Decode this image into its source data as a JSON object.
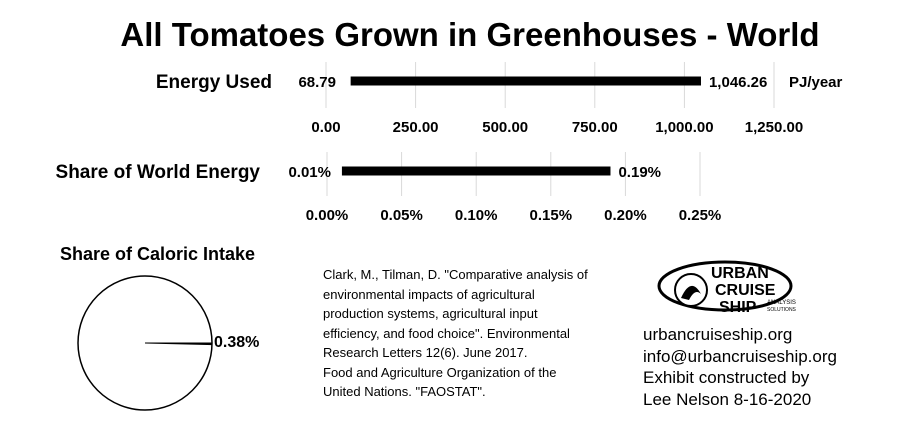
{
  "title": "All Tomatoes Grown in Greenhouses - World",
  "chart_data": [
    {
      "type": "bar",
      "orientation": "horizontal",
      "label": "Energy Used",
      "range": [
        68.79,
        1046.26
      ],
      "value_labels": [
        "68.79",
        "1,046.26"
      ],
      "unit": "PJ/year",
      "xlim": [
        0,
        1250
      ],
      "ticks": [
        0,
        250,
        500,
        750,
        1000,
        1250
      ],
      "tick_labels": [
        "0.00",
        "250.00",
        "500.00",
        "750.00",
        "1,000.00",
        "1,250.00"
      ],
      "grid": true
    },
    {
      "type": "bar",
      "orientation": "horizontal",
      "label": "Share of World Energy",
      "range": [
        0.01,
        0.19
      ],
      "value_labels": [
        "0.01%",
        "0.19%"
      ],
      "xlim": [
        0,
        0.25
      ],
      "ticks": [
        0,
        0.05,
        0.1,
        0.15,
        0.2,
        0.25
      ],
      "tick_labels": [
        "0.00%",
        "0.05%",
        "0.10%",
        "0.15%",
        "0.20%",
        "0.25%"
      ],
      "grid": true
    },
    {
      "type": "pie",
      "title": "Share of Caloric Intake",
      "slices": [
        0.38,
        99.62
      ],
      "slice_label": "0.38%"
    }
  ],
  "references": [
    "Clark, M., Tilman, D. \"Comparative analysis of",
    "environmental impacts of agricultural",
    "production systems, agricultural input",
    "efficiency, and food choice\". Environmental",
    "Research Letters 12(6). June 2017.",
    "Food and Agriculture Organization of the",
    "United Nations. \"FAOSTAT\"."
  ],
  "logo": {
    "line1": "URBAN",
    "line2": "CRUISE",
    "line3": "SHIP",
    "tag1": "ANALYSIS",
    "tag2": "SOLUTIONS"
  },
  "contact": [
    "urbancruiseship.org",
    "info@urbancruiseship.org",
    "Exhibit constructed by",
    "Lee Nelson 8-16-2020"
  ]
}
